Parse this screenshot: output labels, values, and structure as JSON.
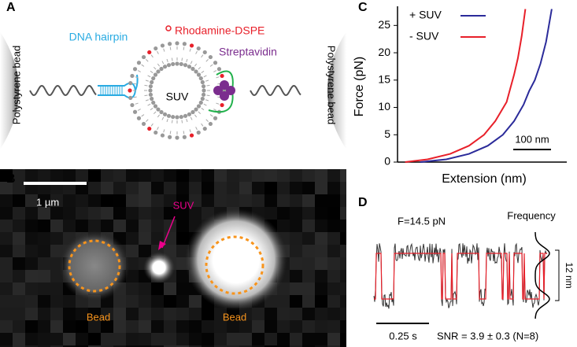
{
  "panels": {
    "a": {
      "label": "A",
      "bead_left": "Polystyrene bead",
      "bead_right": "Polystyrene bead",
      "hairpin": "DNA hairpin",
      "lipid": "Rhodamine-DSPE",
      "vesicle": "SUV",
      "linker": "Streptavidin"
    },
    "b": {
      "label": "B",
      "scale": "1 µm",
      "vesicle": "SUV",
      "bead_left": "Bead",
      "bead_right": "Bead"
    },
    "c": {
      "label": "C",
      "scale": "100 nm"
    },
    "d": {
      "label": "D",
      "force": "F=14.5 pN",
      "frequency": "Frequency",
      "step": "12 nm",
      "time": "0.25 s",
      "snr": "SNR = 3.9 ± 0.3  (N=8)"
    }
  },
  "chart_data": {
    "type": "line",
    "ylabel": "Force (pN)",
    "xlabel": "Extension (nm)",
    "xlim": [
      0,
      450
    ],
    "ylim": [
      0,
      28.5
    ],
    "yticks": [
      0,
      5,
      10,
      15,
      20,
      25
    ],
    "series": [
      {
        "name": "+ SUV",
        "color": "#2b2b9a",
        "x": [
          60,
          130,
          190,
          240,
          280,
          310,
          335,
          350,
          365,
          380,
          395,
          410
        ],
        "values": [
          0,
          0.5,
          1.5,
          3,
          5,
          7.5,
          10.5,
          13,
          15,
          18,
          22,
          28
        ]
      },
      {
        "name": "- SUV",
        "color": "#e8202a",
        "x": [
          20,
          80,
          140,
          190,
          230,
          260,
          290,
          300,
          310,
          320,
          330,
          340
        ],
        "values": [
          0,
          0.5,
          1.5,
          3,
          5,
          7.5,
          11,
          13.5,
          16,
          19,
          23,
          28
        ]
      }
    ]
  }
}
